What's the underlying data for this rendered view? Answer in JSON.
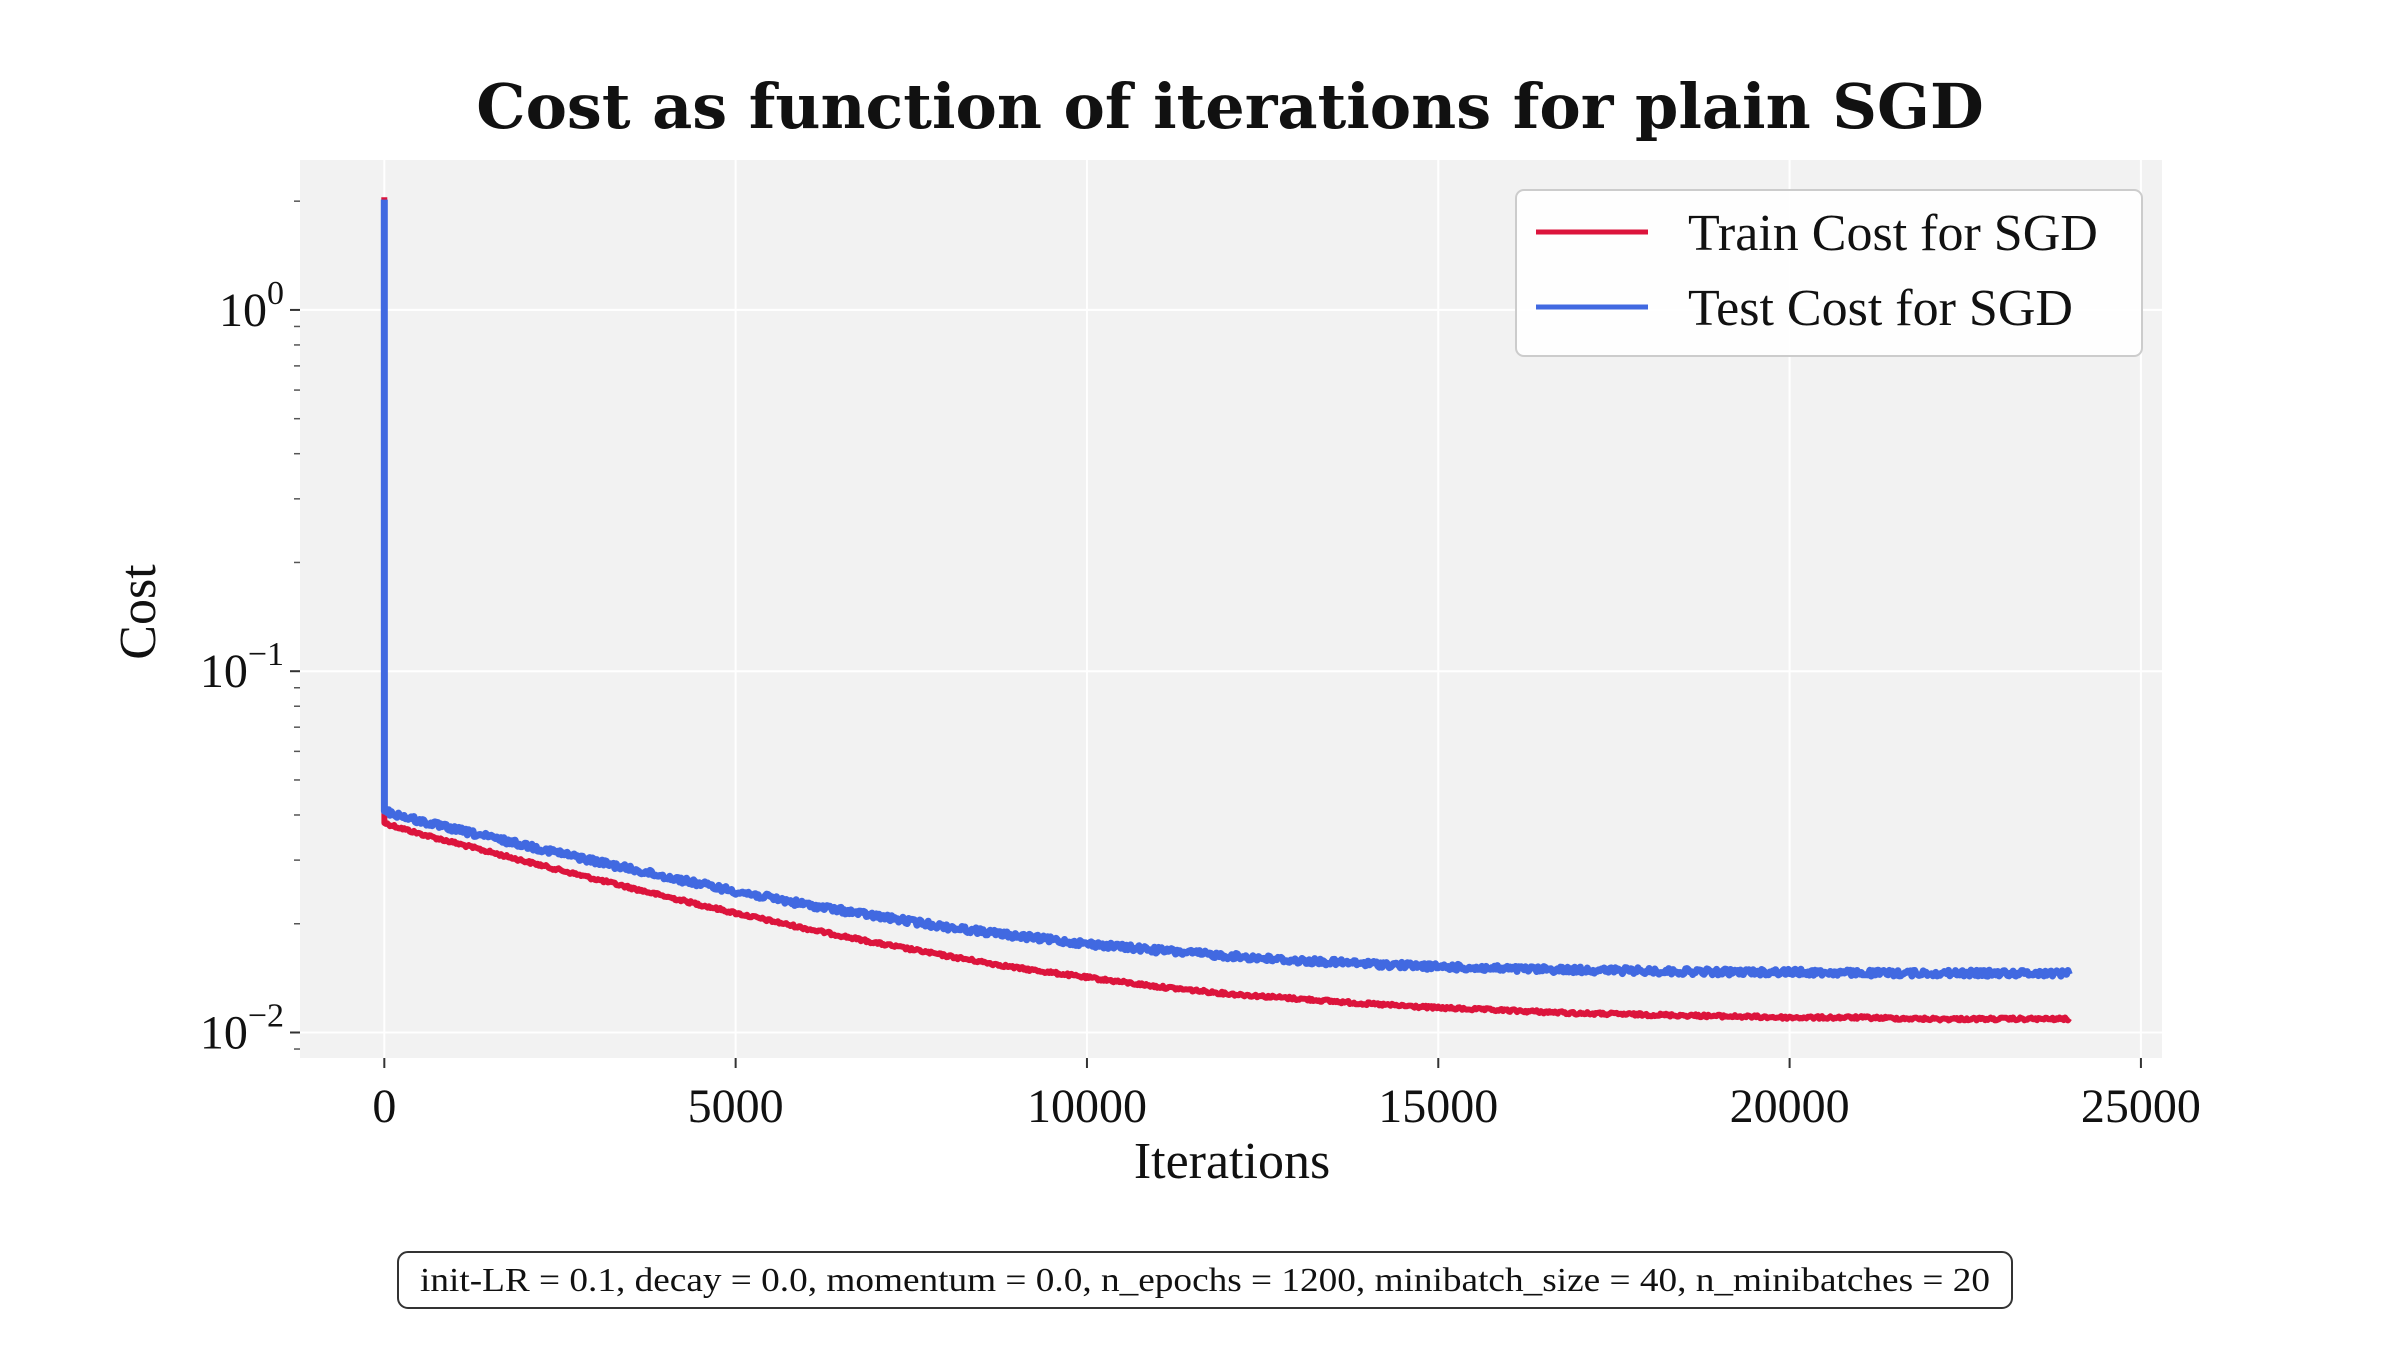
{
  "chart_data": {
    "type": "line",
    "title": "Cost as function of iterations for plain SGD",
    "xlabel": "Iterations",
    "ylabel": "Cost",
    "xlim": [
      -1200,
      25300
    ],
    "ylim": [
      0.0085,
      2.6
    ],
    "yscale": "log",
    "grid": true,
    "legend_placement": "top-right",
    "x_ticks": [
      0,
      5000,
      10000,
      15000,
      20000,
      25000
    ],
    "x_tick_labels": [
      "0",
      "5000",
      "10000",
      "15000",
      "20000",
      "25000"
    ],
    "y_ticks": [
      0.01,
      0.1,
      1
    ],
    "y_tick_labels": [
      {
        "base": "10",
        "exp": "−2"
      },
      {
        "base": "10",
        "exp": "−1"
      },
      {
        "base": "10",
        "exp": "0"
      }
    ],
    "series": [
      {
        "name": "Train Cost for SGD",
        "color": "#dc143c",
        "x": [
          0,
          1,
          500,
          1000,
          2000,
          3000,
          4000,
          5000,
          6000,
          7000,
          8000,
          9000,
          10000,
          11000,
          12000,
          13000,
          14000,
          15000,
          16000,
          17000,
          18000,
          19000,
          20000,
          21000,
          22000,
          23000,
          24000
        ],
        "values": [
          2.05,
          0.038,
          0.0355,
          0.0335,
          0.0298,
          0.0266,
          0.0238,
          0.0214,
          0.0194,
          0.0177,
          0.0163,
          0.0151,
          0.0142,
          0.0134,
          0.0128,
          0.0124,
          0.012,
          0.0117,
          0.0115,
          0.0113,
          0.0112,
          0.0111,
          0.011,
          0.011,
          0.0109,
          0.0109,
          0.0109
        ]
      },
      {
        "name": "Test Cost for SGD",
        "color": "#4169e1",
        "x": [
          0,
          1,
          500,
          1000,
          2000,
          3000,
          4000,
          5000,
          6000,
          7000,
          8000,
          9000,
          10000,
          11000,
          12000,
          13000,
          14000,
          15000,
          16000,
          17000,
          18000,
          19000,
          20000,
          21000,
          22000,
          23000,
          24000
        ],
        "values": [
          2.02,
          0.041,
          0.0385,
          0.0365,
          0.033,
          0.0298,
          0.027,
          0.0246,
          0.0226,
          0.021,
          0.0196,
          0.0185,
          0.0176,
          0.0169,
          0.0163,
          0.0158,
          0.0155,
          0.0152,
          0.015,
          0.0149,
          0.0148,
          0.0147,
          0.0147,
          0.0146,
          0.0146,
          0.0146,
          0.0146
        ]
      }
    ],
    "annotation": "init-LR = 0.1, decay = 0.0, momentum = 0.0, n_epochs = 1200, minibatch_size = 40, n_minibatches = 20"
  }
}
